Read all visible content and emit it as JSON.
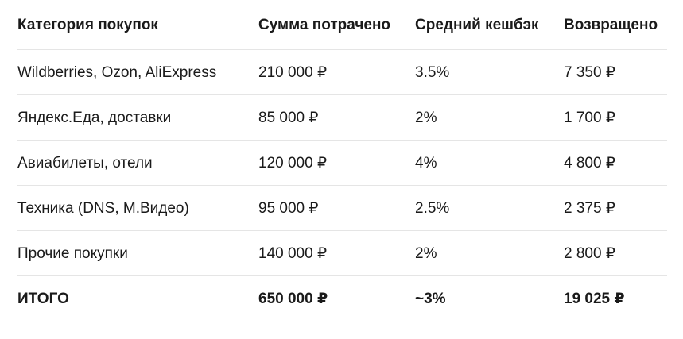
{
  "table": {
    "headers": [
      "Категория покупок",
      "Сумма потрачено",
      "Средний кешбэк",
      "Возвращено"
    ],
    "rows": [
      [
        "Wildberries, Ozon, AliExpress",
        "210 000 ₽",
        "3.5%",
        "7 350 ₽"
      ],
      [
        "Яндекс.Еда, доставки",
        "85 000 ₽",
        "2%",
        "1 700 ₽"
      ],
      [
        "Авиабилеты, отели",
        "120 000 ₽",
        "4%",
        "4 800 ₽"
      ],
      [
        "Техника (DNS, М.Видео)",
        "95 000 ₽",
        "2.5%",
        "2 375 ₽"
      ],
      [
        "Прочие покупки",
        "140 000 ₽",
        "2%",
        "2 800 ₽"
      ]
    ],
    "total": [
      "ИТОГО",
      "650 000 ₽",
      "~3%",
      "19 025 ₽"
    ]
  }
}
